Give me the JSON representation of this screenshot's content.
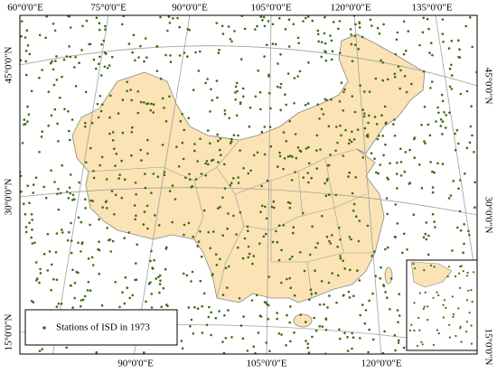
{
  "labels": {
    "top": [
      "60°0'0\"E",
      "75°0'0\"E",
      "90°0'0\"E",
      "105°0'0\"E",
      "120°0'0\"E",
      "135°0'0\"E"
    ],
    "bottom": [
      "90°0'0\"E",
      "105°0'0\"E",
      "120°0'0\"E"
    ],
    "left": [
      "45°0'0\"N",
      "30°0'0\"N",
      "15°0'0\"N"
    ],
    "right": [
      "45°0'0\"N",
      "30°0'0\"N",
      "15°0'0\"N"
    ]
  },
  "legend": "Stations of ISD in 1973"
}
